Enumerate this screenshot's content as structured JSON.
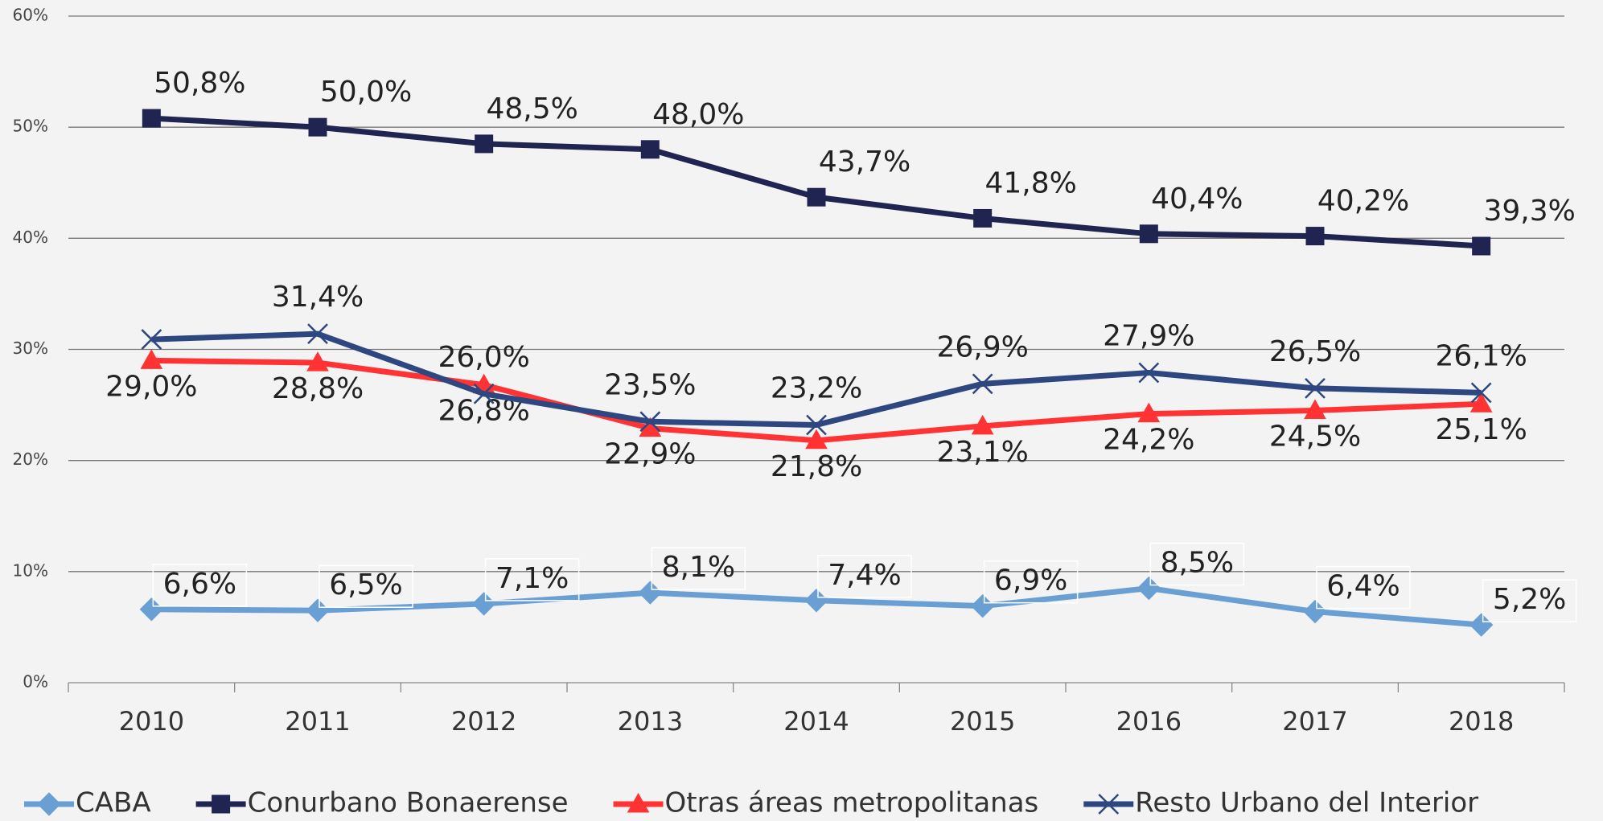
{
  "chart_data": {
    "type": "line",
    "categories": [
      "2010",
      "2011",
      "2012",
      "2013",
      "2014",
      "2015",
      "2016",
      "2017",
      "2018"
    ],
    "ylim": [
      0,
      60
    ],
    "yticks": [
      {
        "value": 0,
        "label": "0%"
      },
      {
        "value": 10,
        "label": "10%"
      },
      {
        "value": 20,
        "label": "20%"
      },
      {
        "value": 30,
        "label": "30%"
      },
      {
        "value": 40,
        "label": "40%"
      },
      {
        "value": 50,
        "label": "50%"
      },
      {
        "value": 60,
        "label": "60%"
      }
    ],
    "grid": true,
    "legend": "bottom",
    "series": [
      {
        "name": "CABA",
        "color": "#6a9fd4",
        "marker": "diamond",
        "values": [
          6.6,
          6.5,
          7.1,
          8.1,
          7.4,
          6.9,
          8.5,
          6.4,
          5.2
        ],
        "value_labels": [
          "6,6%",
          "6,5%",
          "7,1%",
          "8,1%",
          "7,4%",
          "6,9%",
          "8,5%",
          "6,4%",
          "5,2%"
        ]
      },
      {
        "name": "Conurbano Bonaerense",
        "color": "#1f2550",
        "marker": "square",
        "values": [
          50.8,
          50.0,
          48.5,
          48.0,
          43.7,
          41.8,
          40.4,
          40.2,
          39.3
        ],
        "value_labels": [
          "50,8%",
          "50,0%",
          "48,5%",
          "48,0%",
          "43,7%",
          "41,8%",
          "40,4%",
          "40,2%",
          "39,3%"
        ]
      },
      {
        "name": "Otras áreas metropolitanas",
        "color": "#ff3333",
        "marker": "triangle",
        "values": [
          29.0,
          28.8,
          26.8,
          22.9,
          21.8,
          23.1,
          24.2,
          24.5,
          25.1
        ],
        "value_labels": [
          "29,0%",
          "28,8%",
          "26,8%",
          "22,9%",
          "21,8%",
          "23,1%",
          "24,2%",
          "24,5%",
          "25,1%"
        ]
      },
      {
        "name": "Resto Urbano del Interior",
        "color": "#2e4780",
        "marker": "x",
        "values": [
          30.9,
          31.4,
          26.0,
          23.5,
          23.2,
          26.9,
          27.9,
          26.5,
          26.1
        ],
        "value_labels": [
          null,
          "31,4%",
          "26,0%",
          "23,5%",
          "23,2%",
          "26,9%",
          "27,9%",
          "26,5%",
          "26,1%"
        ]
      }
    ]
  }
}
